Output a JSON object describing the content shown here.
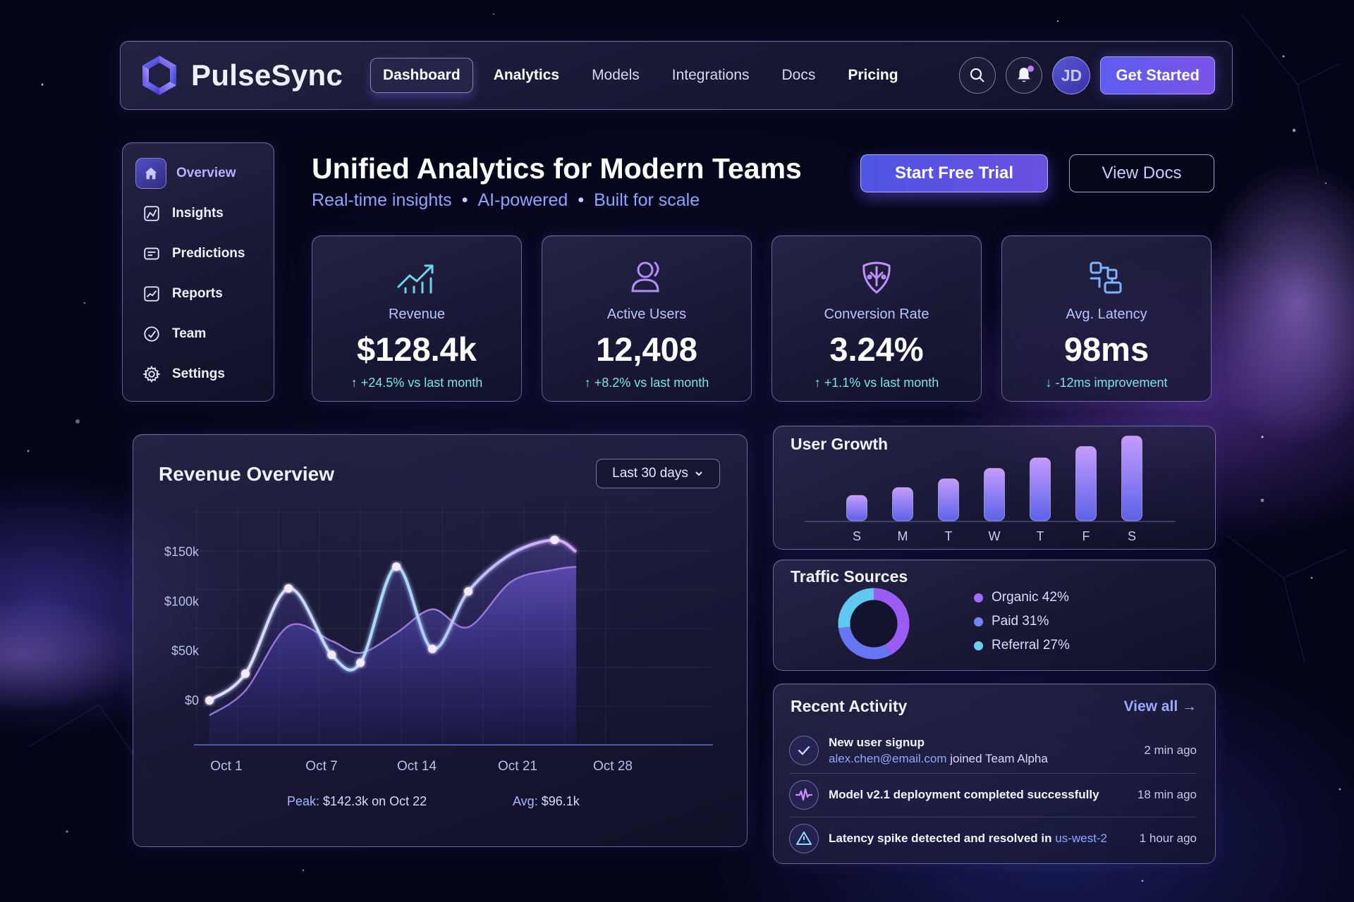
{
  "app": {
    "name": "PulseSync",
    "nav": [
      "Dashboard",
      "Analytics",
      "Models",
      "Integrations",
      "Docs",
      "Pricing"
    ],
    "active_nav": "Dashboard",
    "avatar_initials": "JD",
    "cta": "Get Started"
  },
  "sidebar": {
    "items": [
      {
        "label": "Overview",
        "icon": "home-icon",
        "active": true
      },
      {
        "label": "Insights",
        "icon": "insights-icon"
      },
      {
        "label": "Predictions",
        "icon": "predictions-icon"
      },
      {
        "label": "Reports",
        "icon": "reports-icon"
      },
      {
        "label": "Team",
        "icon": "team-icon"
      },
      {
        "label": "Settings",
        "icon": "settings-icon"
      }
    ]
  },
  "hero": {
    "title": "Unified Analytics for Modern Teams",
    "tagline": [
      "Real-time insights",
      "AI-powered",
      "Built for scale"
    ],
    "separator": "•",
    "primary_button": "Start Free Trial",
    "secondary_button": "View Docs"
  },
  "kpis": [
    {
      "label": "Revenue",
      "value": "$128.4k",
      "delta": "↑ +24.5% vs last month",
      "icon": "trend-up-icon"
    },
    {
      "label": "Active Users",
      "value": "12,408",
      "delta": "↑ +8.2% vs last month",
      "icon": "user-icon"
    },
    {
      "label": "Conversion Rate",
      "value": "3.24%",
      "delta": "↑ +1.1% vs last month",
      "icon": "conversion-icon"
    },
    {
      "label": "Avg. Latency",
      "value": "98ms",
      "delta": "↓ -12ms improvement",
      "icon": "latency-icon"
    }
  ],
  "revenue": {
    "title": "Revenue Overview",
    "range": "Last 30 days",
    "peak_label": "Peak:",
    "peak_value": "$142.3k on Oct 22",
    "avg_label": "Avg:",
    "avg_value": "$96.1k"
  },
  "chart_data": [
    {
      "type": "area",
      "title": "Revenue Overview",
      "xlabel": "",
      "ylabel": "",
      "x_tick_labels": [
        "Oct 1",
        "Oct 7",
        "Oct 14",
        "Oct 21",
        "Oct 28"
      ],
      "y_tick_labels": [
        "$150k",
        "$100k",
        "$50k",
        "$0"
      ],
      "y_ticks": [
        150,
        100,
        50,
        0
      ],
      "ylim": [
        0,
        185
      ],
      "grid": true,
      "series": [
        {
          "x": [
            0,
            5,
            11,
            17,
            21,
            26,
            31,
            36,
            42,
            48,
            51
          ],
          "values": [
            0,
            27,
            113,
            46,
            38,
            135,
            52,
            110,
            148,
            162,
            150
          ]
        },
        {
          "x": [
            0,
            5,
            11,
            17,
            21,
            26,
            31,
            36,
            42,
            48,
            51
          ],
          "values": [
            -15,
            10,
            75,
            60,
            48,
            68,
            92,
            74,
            120,
            132,
            135
          ]
        }
      ],
      "peak": "$142.3k on Oct 22",
      "avg": "$96.1k"
    },
    {
      "type": "bar",
      "title": "User Growth",
      "categories": [
        "S",
        "M",
        "T",
        "W",
        "T",
        "F",
        "S"
      ],
      "values": [
        29,
        38,
        48,
        60,
        72,
        85,
        97
      ],
      "ylim": [
        0,
        100
      ]
    },
    {
      "type": "pie",
      "title": "Traffic Sources",
      "categories": [
        "Organic 42%",
        "Paid 31%",
        "Referral 27%"
      ],
      "values": [
        42,
        31,
        27
      ],
      "colors": [
        "#9b5cf6",
        "#6675f2",
        "#5ec8f0"
      ]
    }
  ],
  "user_growth": {
    "title": "User Growth",
    "days": [
      "S",
      "M",
      "T",
      "W",
      "T",
      "F",
      "S"
    ]
  },
  "traffic": {
    "title": "Traffic Sources",
    "items": [
      {
        "label": "Organic 42%",
        "color": "#a66af6"
      },
      {
        "label": "Paid 31%",
        "color": "#7286f4"
      },
      {
        "label": "Referral 27%",
        "color": "#6bd0f2"
      }
    ]
  },
  "activity": {
    "title": "Recent Activity",
    "view_all": "View all →",
    "items": [
      {
        "title": "New user signup",
        "email": "alex.chen@email.com",
        "rest": " joined Team Alpha",
        "time": "2 min ago",
        "icon": "check-icon"
      },
      {
        "title": "Model v2.1 deployment completed successfully",
        "time": "18 min ago",
        "icon": "pulse-icon"
      },
      {
        "title": "Latency spike detected and resolved in ",
        "region": "us-west-2",
        "time": "1 hour ago",
        "icon": "alert-icon"
      }
    ]
  }
}
